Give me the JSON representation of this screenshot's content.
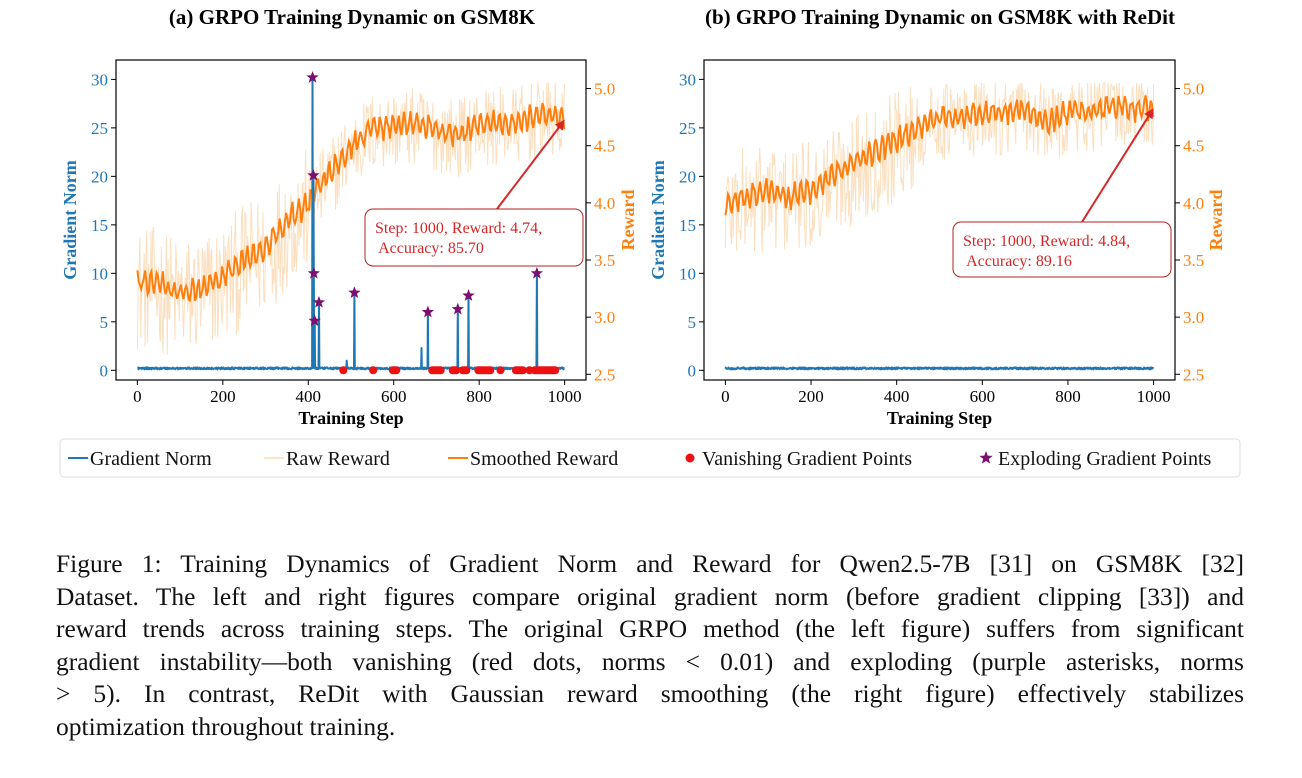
{
  "figure": {
    "caption_lines": [
      "Figure 1: Training Dynamics of Gradient Norm and Reward for Qwen2.5-7B [31] on GSM8K [32]",
      "Dataset. The left and right figures compare original gradient norm (before gradient clipping [33]) and",
      "reward trends across training steps. The original GRPO method (the left figure) suffers from significant",
      "gradient instability—both vanishing (red dots, norms < 0.01) and exploding (purple asterisks, norms",
      "> 5).  In contrast, ReDit with Gaussian reward smoothing (the right figure) effectively stabilizes",
      "optimization throughout training."
    ]
  },
  "legend": {
    "placement": "bottom-center",
    "entries": [
      {
        "label": "Gradient Norm",
        "kind": "line",
        "color": "#1f77b4"
      },
      {
        "label": "Raw Reward",
        "kind": "line",
        "color": "#fde3c8"
      },
      {
        "label": "Smoothed Reward",
        "kind": "line",
        "color": "#ff7f0e"
      },
      {
        "label": "Vanishing Gradient Points",
        "kind": "dot",
        "color": "#ee1111"
      },
      {
        "label": "Exploding Gradient Points",
        "kind": "star",
        "color": "#7b1070"
      }
    ]
  },
  "colors": {
    "grad": "#1f77b4",
    "reward": "#ff7f0e",
    "raw": "#fcd9b4",
    "annotation": "#d62728",
    "star": "#7b1070",
    "vanish": "#ee1111"
  },
  "chart_data": [
    {
      "type": "line",
      "title": "(a) GRPO Training Dynamic on GSM8K",
      "xlabel": "Training Step",
      "ylabel_left": "Gradient Norm",
      "ylabel_right": "Reward",
      "xlim": [
        -50,
        1050
      ],
      "ylim_left": [
        -1,
        32
      ],
      "ylim_right": [
        2.45,
        5.25
      ],
      "xticks": [
        0,
        200,
        400,
        600,
        800,
        1000
      ],
      "yticks_left": [
        0,
        5,
        10,
        15,
        20,
        25,
        30
      ],
      "yticks_right": [
        "2.5",
        "3.0",
        "3.5",
        "4.0",
        "4.5",
        "5.0"
      ],
      "grid": false,
      "smoothed_reward_keypoints": {
        "x": [
          0,
          50,
          100,
          150,
          200,
          250,
          300,
          350,
          400,
          450,
          500,
          550,
          600,
          650,
          700,
          750,
          800,
          850,
          900,
          950,
          1000
        ],
        "y": [
          3.3,
          3.3,
          3.2,
          3.25,
          3.35,
          3.5,
          3.6,
          3.85,
          4.0,
          4.25,
          4.5,
          4.65,
          4.68,
          4.7,
          4.65,
          4.6,
          4.7,
          4.7,
          4.72,
          4.78,
          4.74
        ]
      },
      "gradient_norm_baseline": 0.2,
      "gradient_spikes": [
        {
          "x": 410,
          "y": 30.2
        },
        {
          "x": 412,
          "y": 20.1
        },
        {
          "x": 413,
          "y": 10.0
        },
        {
          "x": 415,
          "y": 5.1
        },
        {
          "x": 425,
          "y": 7.0
        },
        {
          "x": 508,
          "y": 8.0
        },
        {
          "x": 680,
          "y": 6.0
        },
        {
          "x": 750,
          "y": 6.3
        },
        {
          "x": 775,
          "y": 7.7
        },
        {
          "x": 935,
          "y": 10.0
        },
        {
          "x": 490,
          "y": 1.0
        },
        {
          "x": 665,
          "y": 2.3
        }
      ],
      "exploding_points": [
        {
          "x": 410,
          "y": 30.2
        },
        {
          "x": 412,
          "y": 20.1
        },
        {
          "x": 413,
          "y": 10.0
        },
        {
          "x": 415,
          "y": 5.1
        },
        {
          "x": 425,
          "y": 7.0
        },
        {
          "x": 508,
          "y": 8.0
        },
        {
          "x": 680,
          "y": 6.0
        },
        {
          "x": 750,
          "y": 6.3
        },
        {
          "x": 775,
          "y": 7.7
        },
        {
          "x": 935,
          "y": 10.0
        }
      ],
      "vanishing_points_x": [
        482,
        552,
        598,
        602,
        606,
        690,
        694,
        698,
        702,
        706,
        710,
        738,
        742,
        746,
        762,
        766,
        770,
        798,
        802,
        806,
        810,
        814,
        818,
        822,
        826,
        850,
        886,
        890,
        894,
        898,
        902,
        918,
        930,
        934,
        938,
        942,
        946,
        950,
        954,
        958,
        962,
        966,
        970,
        974,
        978
      ],
      "annotation": {
        "text_line1": "Step: 1000, Reward: 4.74,",
        "text_line2": " Accuracy: 85.70",
        "step": 1000,
        "reward": 4.74,
        "accuracy": 85.7
      }
    },
    {
      "type": "line",
      "title": "(b) GRPO Training Dynamic on GSM8K with ReDit",
      "xlabel": "Training Step",
      "ylabel_left": "Gradient Norm",
      "ylabel_right": "Reward",
      "xlim": [
        -50,
        1050
      ],
      "ylim_left": [
        -1,
        32
      ],
      "ylim_right": [
        2.45,
        5.25
      ],
      "xticks": [
        0,
        200,
        400,
        600,
        800,
        1000
      ],
      "yticks_left": [
        0,
        5,
        10,
        15,
        20,
        25,
        30
      ],
      "yticks_right": [
        "2.5",
        "3.0",
        "3.5",
        "4.0",
        "4.5",
        "5.0"
      ],
      "grid": false,
      "smoothed_reward_keypoints": {
        "x": [
          0,
          50,
          100,
          150,
          200,
          250,
          300,
          350,
          400,
          450,
          500,
          550,
          600,
          650,
          700,
          750,
          800,
          850,
          900,
          950,
          1000
        ],
        "y": [
          4.0,
          4.05,
          4.1,
          4.05,
          4.1,
          4.25,
          4.35,
          4.45,
          4.55,
          4.65,
          4.75,
          4.75,
          4.78,
          4.8,
          4.82,
          4.7,
          4.8,
          4.8,
          4.85,
          4.82,
          4.84
        ]
      },
      "gradient_norm_baseline": 0.2,
      "gradient_spikes": [],
      "exploding_points": [],
      "vanishing_points_x": [],
      "annotation": {
        "text_line1": "Step: 1000, Reward: 4.84,",
        "text_line2": " Accuracy: 89.16",
        "step": 1000,
        "reward": 4.84,
        "accuracy": 89.16
      }
    }
  ]
}
